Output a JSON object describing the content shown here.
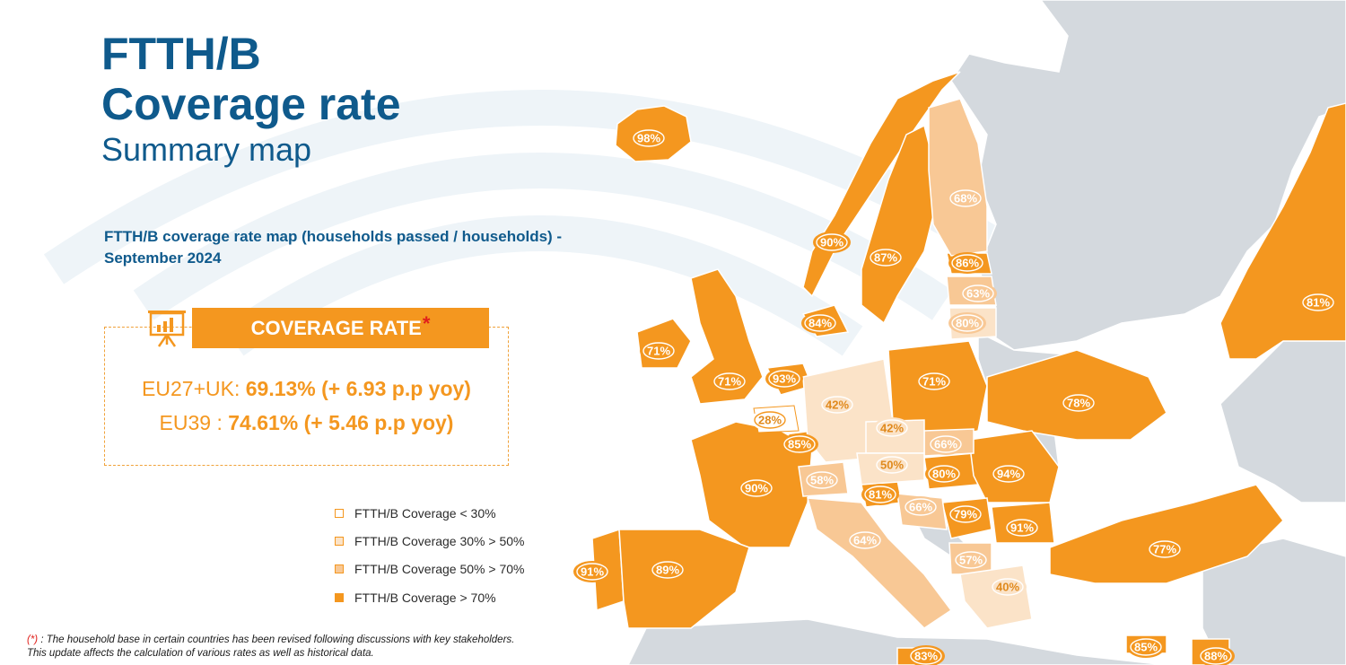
{
  "title": {
    "line1": "FTTH/B",
    "line2": "Coverage rate",
    "subtitle": "Summary map"
  },
  "map_caption": "FTTH/B coverage rate map (households passed / households) - September 2024",
  "coverage_box": {
    "header": "COVERAGE RATE",
    "header_marker": "*",
    "eu27_label": "EU27+UK: ",
    "eu27_value": "69.13% (+ 6.93 p.p yoy)",
    "eu39_label": "EU39 : ",
    "eu39_value": "74.61% (+ 5.46 p.p yoy)",
    "icon": "presentation-chart-icon"
  },
  "legend": [
    {
      "label": "FTTH/B Coverage < 30%",
      "color": "#ffffff"
    },
    {
      "label": "FTTH/B Coverage 30% > 50%",
      "color": "#fbe3c8"
    },
    {
      "label": "FTTH/B Coverage 50% > 70%",
      "color": "#f8c895"
    },
    {
      "label": "FTTH/B Coverage > 70%",
      "color": "#f4971f"
    }
  ],
  "footnote": {
    "marker": "(*)",
    "text": " : The household base in certain countries has been revised following discussions with key stakeholders. This update affects the calculation of various rates as well as historical data."
  },
  "colors": {
    "title": "#0f5a8c",
    "accent": "#f4971f",
    "tier_lt30": "#ffffff",
    "tier_30_50": "#fbe3c8",
    "tier_50_70": "#f8c895",
    "tier_gt70": "#f4971f",
    "non_covered_land": "#d4d9de"
  },
  "map_labels": [
    {
      "id": "iceland",
      "value": "98%"
    },
    {
      "id": "norway",
      "value": "90%"
    },
    {
      "id": "sweden",
      "value": "87%"
    },
    {
      "id": "finland",
      "value": "68%"
    },
    {
      "id": "estonia",
      "value": "86%"
    },
    {
      "id": "latvia",
      "value": "63%"
    },
    {
      "id": "lithuania",
      "value": "80%"
    },
    {
      "id": "denmark",
      "value": "84%"
    },
    {
      "id": "ireland",
      "value": "71%"
    },
    {
      "id": "uk",
      "value": "71%"
    },
    {
      "id": "netherlands",
      "value": "93%"
    },
    {
      "id": "belgium",
      "value": "28%"
    },
    {
      "id": "luxembourg",
      "value": "85%"
    },
    {
      "id": "germany",
      "value": "42%"
    },
    {
      "id": "poland",
      "value": "71%"
    },
    {
      "id": "ukraine",
      "value": "78%"
    },
    {
      "id": "russia",
      "value": "81%"
    },
    {
      "id": "czechia",
      "value": "42%"
    },
    {
      "id": "slovakia",
      "value": "66%"
    },
    {
      "id": "austria",
      "value": "50%"
    },
    {
      "id": "hungary",
      "value": "80%"
    },
    {
      "id": "switzerland",
      "value": "58%"
    },
    {
      "id": "france",
      "value": "90%"
    },
    {
      "id": "slovenia",
      "value": "81%"
    },
    {
      "id": "romania",
      "value": "94%"
    },
    {
      "id": "croatia",
      "value": "66%"
    },
    {
      "id": "serbia",
      "value": "79%"
    },
    {
      "id": "bulgaria",
      "value": "91%"
    },
    {
      "id": "italy",
      "value": "64%"
    },
    {
      "id": "north-macedonia",
      "value": "57%"
    },
    {
      "id": "greece",
      "value": "40%"
    },
    {
      "id": "turkey",
      "value": "77%"
    },
    {
      "id": "portugal",
      "value": "91%"
    },
    {
      "id": "spain",
      "value": "89%"
    },
    {
      "id": "malta",
      "value": "83%"
    },
    {
      "id": "cyprus",
      "value": "85%"
    },
    {
      "id": "israel",
      "value": "88%"
    }
  ]
}
